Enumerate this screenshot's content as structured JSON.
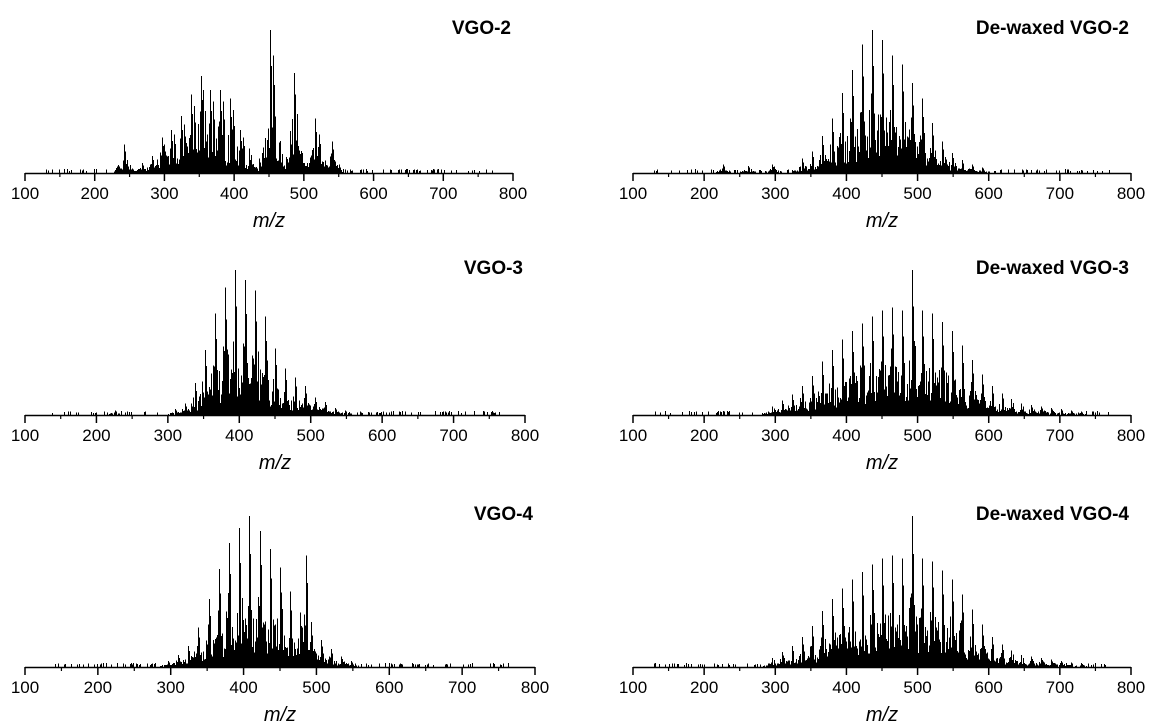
{
  "chart_data": [
    {
      "type": "bar",
      "title": "VGO-2",
      "xlabel": "m/z",
      "ylabel": "",
      "xlim": [
        100,
        800
      ],
      "xticks": [
        100,
        200,
        300,
        400,
        500,
        600,
        700,
        800
      ],
      "grid": false,
      "peaks": [
        [
          242,
          0.2
        ],
        [
          268,
          0.07
        ],
        [
          282,
          0.12
        ],
        [
          296,
          0.25
        ],
        [
          300,
          0.2
        ],
        [
          310,
          0.3
        ],
        [
          314,
          0.27
        ],
        [
          324,
          0.4
        ],
        [
          328,
          0.34
        ],
        [
          338,
          0.55
        ],
        [
          342,
          0.47
        ],
        [
          352,
          0.68
        ],
        [
          356,
          0.58
        ],
        [
          366,
          0.58
        ],
        [
          370,
          0.5
        ],
        [
          380,
          0.58
        ],
        [
          384,
          0.5
        ],
        [
          394,
          0.52
        ],
        [
          398,
          0.44
        ],
        [
          408,
          0.3
        ],
        [
          412,
          0.25
        ],
        [
          422,
          0.17
        ],
        [
          436,
          0.1
        ],
        [
          452,
          1.0
        ],
        [
          456,
          0.82
        ],
        [
          466,
          0.1
        ],
        [
          486,
          0.7
        ],
        [
          488,
          0.55
        ],
        [
          516,
          0.38
        ],
        [
          522,
          0.27
        ],
        [
          540,
          0.22
        ]
      ]
    },
    {
      "type": "bar",
      "title": "De-waxed VGO-2",
      "xlabel": "m/z",
      "ylabel": "",
      "xlim": [
        100,
        800
      ],
      "xticks": [
        100,
        200,
        300,
        400,
        500,
        600,
        700,
        800
      ],
      "grid": false,
      "peaks": [
        [
          226,
          0.06
        ],
        [
          262,
          0.05
        ],
        [
          296,
          0.06
        ],
        [
          338,
          0.1
        ],
        [
          352,
          0.15
        ],
        [
          366,
          0.26
        ],
        [
          380,
          0.38
        ],
        [
          394,
          0.56
        ],
        [
          408,
          0.72
        ],
        [
          422,
          0.9
        ],
        [
          436,
          1.0
        ],
        [
          450,
          0.93
        ],
        [
          464,
          0.82
        ],
        [
          478,
          0.76
        ],
        [
          492,
          0.63
        ],
        [
          506,
          0.52
        ],
        [
          520,
          0.35
        ],
        [
          534,
          0.22
        ],
        [
          548,
          0.14
        ],
        [
          562,
          0.09
        ],
        [
          576,
          0.06
        ],
        [
          590,
          0.04
        ]
      ]
    },
    {
      "type": "bar",
      "title": "VGO-3",
      "xlabel": "m/z",
      "ylabel": "",
      "xlim": [
        100,
        800
      ],
      "xticks": [
        100,
        200,
        300,
        400,
        500,
        600,
        700,
        800
      ],
      "grid": false,
      "peaks": [
        [
          226,
          0.03
        ],
        [
          310,
          0.04
        ],
        [
          324,
          0.08
        ],
        [
          338,
          0.22
        ],
        [
          352,
          0.45
        ],
        [
          366,
          0.7
        ],
        [
          380,
          0.88
        ],
        [
          394,
          1.0
        ],
        [
          408,
          0.93
        ],
        [
          422,
          0.86
        ],
        [
          436,
          0.68
        ],
        [
          450,
          0.46
        ],
        [
          464,
          0.32
        ],
        [
          478,
          0.26
        ],
        [
          492,
          0.2
        ],
        [
          506,
          0.12
        ],
        [
          520,
          0.09
        ],
        [
          534,
          0.05
        ],
        [
          548,
          0.03
        ]
      ]
    },
    {
      "type": "bar",
      "title": "De-waxed VGO-3",
      "xlabel": "m/z",
      "ylabel": "",
      "xlim": [
        100,
        800
      ],
      "xticks": [
        100,
        200,
        300,
        400,
        500,
        600,
        700,
        800
      ],
      "grid": false,
      "peaks": [
        [
          296,
          0.06
        ],
        [
          310,
          0.1
        ],
        [
          324,
          0.14
        ],
        [
          338,
          0.2
        ],
        [
          352,
          0.27
        ],
        [
          366,
          0.37
        ],
        [
          380,
          0.45
        ],
        [
          394,
          0.52
        ],
        [
          408,
          0.58
        ],
        [
          422,
          0.63
        ],
        [
          436,
          0.68
        ],
        [
          450,
          0.72
        ],
        [
          464,
          0.74
        ],
        [
          478,
          0.72
        ],
        [
          492,
          1.0
        ],
        [
          506,
          0.72
        ],
        [
          520,
          0.7
        ],
        [
          534,
          0.64
        ],
        [
          548,
          0.58
        ],
        [
          562,
          0.48
        ],
        [
          576,
          0.38
        ],
        [
          590,
          0.28
        ],
        [
          604,
          0.2
        ],
        [
          618,
          0.15
        ],
        [
          632,
          0.11
        ],
        [
          646,
          0.08
        ],
        [
          660,
          0.07
        ],
        [
          674,
          0.06
        ],
        [
          688,
          0.05
        ],
        [
          702,
          0.04
        ],
        [
          716,
          0.03
        ],
        [
          730,
          0.025
        ]
      ]
    },
    {
      "type": "bar",
      "title": "VGO-4",
      "xlabel": "m/z",
      "ylabel": "",
      "xlim": [
        100,
        800
      ],
      "xticks": [
        100,
        200,
        300,
        400,
        500,
        600,
        700,
        800
      ],
      "grid": false,
      "peaks": [
        [
          296,
          0.04
        ],
        [
          310,
          0.08
        ],
        [
          324,
          0.14
        ],
        [
          338,
          0.26
        ],
        [
          352,
          0.45
        ],
        [
          366,
          0.65
        ],
        [
          380,
          0.82
        ],
        [
          394,
          0.92
        ],
        [
          408,
          1.0
        ],
        [
          422,
          0.9
        ],
        [
          436,
          0.78
        ],
        [
          450,
          0.66
        ],
        [
          464,
          0.5
        ],
        [
          478,
          0.36
        ],
        [
          486,
          0.74
        ],
        [
          492,
          0.28
        ],
        [
          506,
          0.18
        ],
        [
          520,
          0.12
        ],
        [
          534,
          0.07
        ],
        [
          548,
          0.04
        ]
      ]
    },
    {
      "type": "bar",
      "title": "De-waxed VGO-4",
      "xlabel": "m/z",
      "ylabel": "",
      "xlim": [
        100,
        800
      ],
      "xticks": [
        100,
        200,
        300,
        400,
        500,
        600,
        700,
        800
      ],
      "grid": false,
      "peaks": [
        [
          296,
          0.06
        ],
        [
          310,
          0.1
        ],
        [
          324,
          0.14
        ],
        [
          338,
          0.2
        ],
        [
          352,
          0.27
        ],
        [
          366,
          0.37
        ],
        [
          380,
          0.45
        ],
        [
          394,
          0.52
        ],
        [
          408,
          0.58
        ],
        [
          422,
          0.63
        ],
        [
          436,
          0.68
        ],
        [
          450,
          0.72
        ],
        [
          464,
          0.74
        ],
        [
          478,
          0.72
        ],
        [
          492,
          1.0
        ],
        [
          506,
          0.72
        ],
        [
          520,
          0.7
        ],
        [
          534,
          0.64
        ],
        [
          548,
          0.58
        ],
        [
          562,
          0.48
        ],
        [
          576,
          0.38
        ],
        [
          590,
          0.28
        ],
        [
          604,
          0.2
        ],
        [
          618,
          0.15
        ],
        [
          632,
          0.11
        ],
        [
          646,
          0.08
        ],
        [
          660,
          0.07
        ],
        [
          674,
          0.06
        ],
        [
          688,
          0.05
        ],
        [
          702,
          0.04
        ],
        [
          716,
          0.03
        ],
        [
          730,
          0.025
        ]
      ]
    }
  ]
}
